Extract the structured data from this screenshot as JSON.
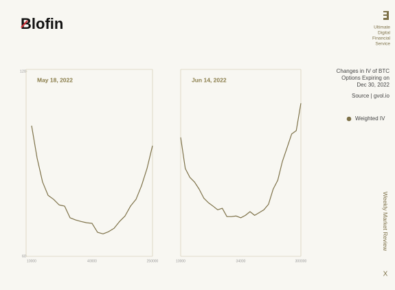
{
  "brand": "Blofin",
  "tagline": [
    "Ultimate",
    "Digital",
    "Financial",
    "Service"
  ],
  "description": [
    "Changes in IV of BTC",
    "Options Expiring on",
    "Dec 30, 2022"
  ],
  "source": "Source | gvol.io",
  "legend": {
    "label": "Weighted IV",
    "color": "#7d7148"
  },
  "side_label": "Weekly Market Review",
  "close": "X",
  "chart_data": [
    {
      "type": "line",
      "title": "May 18, 2022",
      "color": "#7d7148",
      "categories": [
        "10000",
        null,
        null,
        null,
        null,
        null,
        null,
        null,
        null,
        null,
        null,
        "40000",
        null,
        null,
        null,
        null,
        null,
        null,
        null,
        null,
        null,
        null,
        "250000"
      ],
      "values": [
        102.4,
        91.9,
        84.1,
        79.8,
        78.5,
        76.7,
        76.3,
        72.5,
        71.8,
        71.3,
        70.9,
        70.7,
        67.8,
        67.3,
        68.0,
        69.1,
        71.3,
        73.1,
        76.3,
        78.5,
        82.9,
        88.5,
        95.9
      ],
      "ylim": [
        60,
        120
      ],
      "yticks": [
        60,
        120
      ]
    },
    {
      "type": "line",
      "title": "Jun 14, 2022",
      "color": "#7d7148",
      "categories": [
        "10000",
        null,
        null,
        null,
        null,
        null,
        null,
        null,
        null,
        null,
        null,
        null,
        null,
        "34000",
        null,
        null,
        null,
        null,
        null,
        null,
        null,
        null,
        null,
        null,
        null,
        null,
        "300000"
      ],
      "values": [
        98.6,
        88.5,
        85.6,
        84.1,
        81.8,
        78.9,
        77.4,
        76.3,
        75.1,
        75.6,
        72.9,
        72.9,
        73.1,
        72.5,
        73.3,
        74.5,
        73.3,
        74.2,
        75.1,
        76.9,
        81.8,
        84.7,
        90.8,
        95.2,
        99.7,
        100.8,
        109.7
      ],
      "ylim": [
        60,
        120
      ]
    }
  ]
}
